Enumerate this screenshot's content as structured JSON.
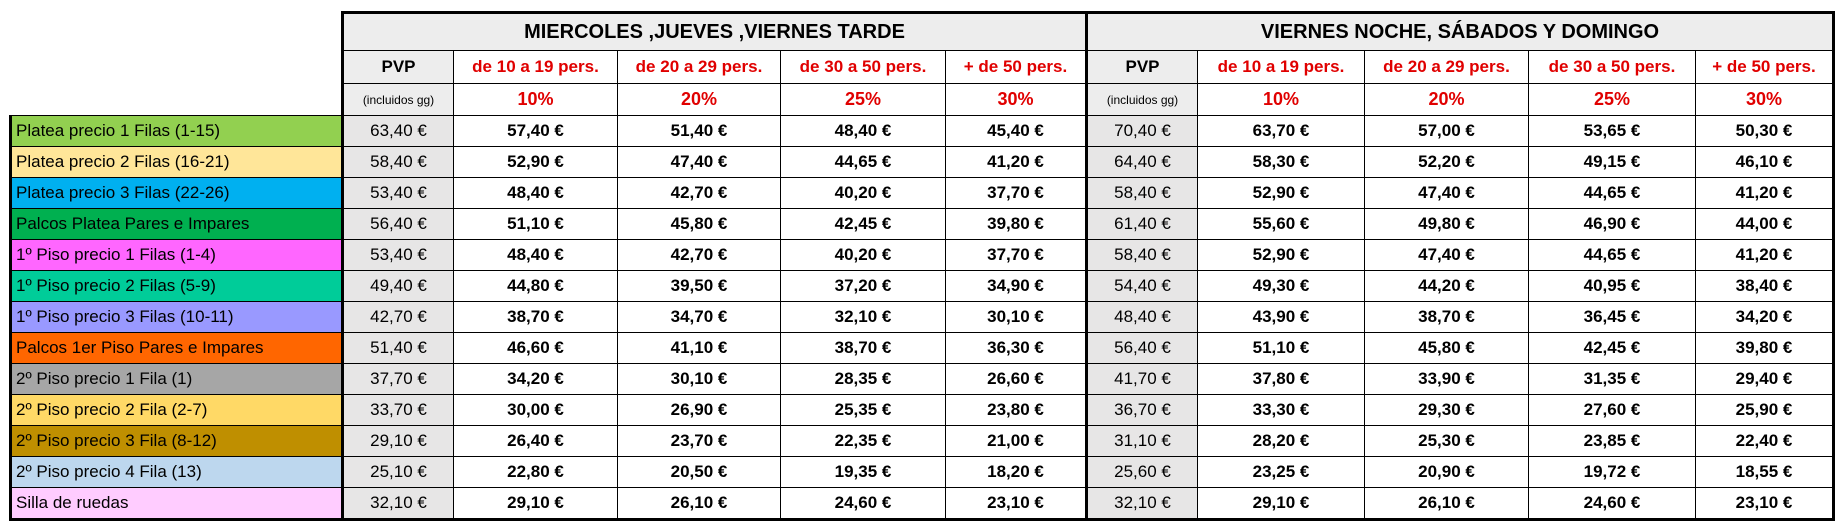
{
  "groups": [
    {
      "title": "MIERCOLES ,JUEVES ,VIERNES TARDE"
    },
    {
      "title": "VIERNES NOCHE, SÁBADOS Y DOMINGO"
    }
  ],
  "columns": {
    "pvp": "PVP",
    "pvp_sub": "(incluidos gg)",
    "tiers": [
      "de 10 a 19 pers.",
      "de 20 a 29 pers.",
      "de 30 a 50 pers.",
      "+ de 50 pers."
    ],
    "discounts": [
      "10%",
      "20%",
      "25%",
      "30%"
    ]
  },
  "colors": {
    "accent_red": "#E00000",
    "pvp_bg": "#E7E6E6",
    "header_bg": "#EDEDED"
  },
  "rows": [
    {
      "label": "Platea precio 1   Filas (1-15)",
      "color": "#92D050",
      "a": [
        "63,40 €",
        "57,40 €",
        "51,40 €",
        "48,40 €",
        "45,40 €"
      ],
      "b": [
        "70,40 €",
        "63,70 €",
        "57,00 €",
        "53,65 €",
        "50,30 €"
      ]
    },
    {
      "label": "Platea precio 2   Filas (16-21)",
      "color": "#FFE699",
      "a": [
        "58,40 €",
        "52,90 €",
        "47,40 €",
        "44,65 €",
        "41,20 €"
      ],
      "b": [
        "64,40 €",
        "58,30 €",
        "52,20 €",
        "49,15 €",
        "46,10 €"
      ]
    },
    {
      "label": "Platea precio 3   Filas (22-26)",
      "color": "#00B0F0",
      "a": [
        "53,40 €",
        "48,40 €",
        "42,70 €",
        "40,20 €",
        "37,70 €"
      ],
      "b": [
        "58,40 €",
        "52,90 €",
        "47,40 €",
        "44,65 €",
        "41,20 €"
      ]
    },
    {
      "label": "Palcos Platea Pares e Impares",
      "color": "#00B050",
      "a": [
        "56,40 €",
        "51,10 €",
        "45,80 €",
        "42,45 €",
        "39,80 €"
      ],
      "b": [
        "61,40 €",
        "55,60 €",
        "49,80 €",
        "46,90 €",
        "44,00 €"
      ]
    },
    {
      "label": "1º Piso precio 1  Filas (1-4)",
      "color": "#FF66FF",
      "a": [
        "53,40 €",
        "48,40 €",
        "42,70 €",
        "40,20 €",
        "37,70 €"
      ],
      "b": [
        "58,40 €",
        "52,90 €",
        "47,40 €",
        "44,65 €",
        "41,20 €"
      ]
    },
    {
      "label": "1º Piso precio 2  Filas (5-9)",
      "color": "#00CC99",
      "a": [
        "49,40 €",
        "44,80 €",
        "39,50 €",
        "37,20 €",
        "34,90 €"
      ],
      "b": [
        "54,40 €",
        "49,30 €",
        "44,20 €",
        "40,95 €",
        "38,40 €"
      ]
    },
    {
      "label": "1º Piso precio 3  Filas (10-11)",
      "color": "#9999FF",
      "a": [
        "42,70 €",
        "38,70 €",
        "34,70 €",
        "32,10 €",
        "30,10 €"
      ],
      "b": [
        "48,40 €",
        "43,90 €",
        "38,70 €",
        "36,45 €",
        "34,20 €"
      ]
    },
    {
      "label": "Palcos 1er Piso Pares e Impares",
      "color": "#FF6600",
      "a": [
        "51,40 €",
        "46,60 €",
        "41,10 €",
        "38,70 €",
        "36,30 €"
      ],
      "b": [
        "56,40 €",
        "51,10 €",
        "45,80 €",
        "42,45 €",
        "39,80 €"
      ]
    },
    {
      "label": "2º Piso precio 1   Fila (1)",
      "color": "#A6A6A6",
      "a": [
        "37,70 €",
        "34,20 €",
        "30,10 €",
        "28,35 €",
        "26,60 €"
      ],
      "b": [
        "41,70 €",
        "37,80 €",
        "33,90 €",
        "31,35 €",
        "29,40 €"
      ]
    },
    {
      "label": "2º Piso precio 2   Fila (2-7)",
      "color": "#FFD966",
      "a": [
        "33,70 €",
        "30,00 €",
        "26,90 €",
        "25,35 €",
        "23,80 €"
      ],
      "b": [
        "36,70 €",
        "33,30 €",
        "29,30 €",
        "27,60 €",
        "25,90 €"
      ]
    },
    {
      "label": "2º Piso precio 3   Fila (8-12)",
      "color": "#BF8F00",
      "a": [
        "29,10 €",
        "26,40 €",
        "23,70 €",
        "22,35 €",
        "21,00 €"
      ],
      "b": [
        "31,10 €",
        "28,20 €",
        "25,30 €",
        "23,85 €",
        "22,40 €"
      ]
    },
    {
      "label": "2º Piso precio 4   Fila (13)",
      "color": "#BDD7EE",
      "a": [
        "25,10 €",
        "22,80 €",
        "20,50 €",
        "19,35 €",
        "18,20 €"
      ],
      "b": [
        "25,60 €",
        "23,25 €",
        "20,90 €",
        "19,72 €",
        "18,55 €"
      ]
    },
    {
      "label": "Silla de ruedas",
      "color": "#FFCCFF",
      "a": [
        "32,10 €",
        "29,10 €",
        "26,10 €",
        "24,60 €",
        "23,10 €"
      ],
      "b": [
        "32,10 €",
        "29,10 €",
        "26,10 €",
        "24,60 €",
        "23,10 €"
      ]
    }
  ]
}
